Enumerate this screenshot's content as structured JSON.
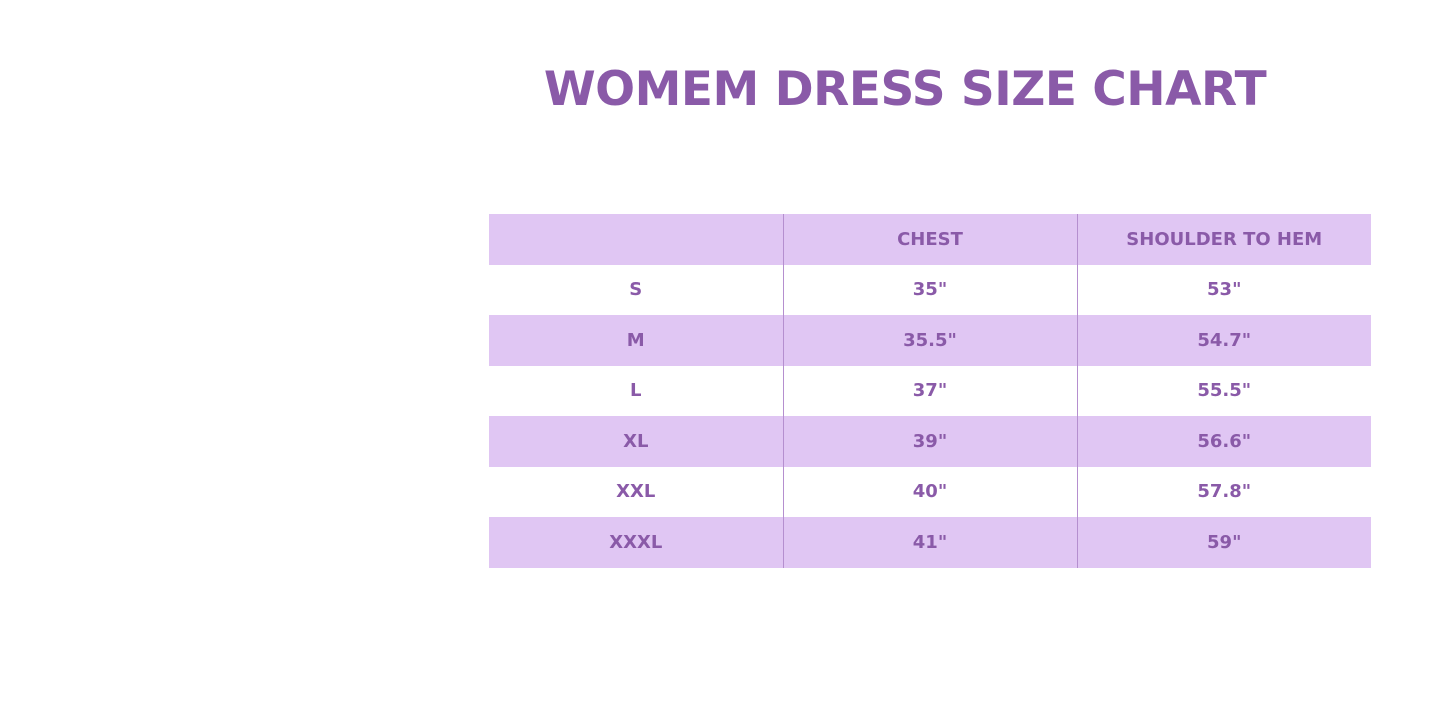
{
  "title": "WOMEM DRESS SIZE CHART",
  "colors": {
    "text": "#8a5aa8",
    "band": "#e0c6f3"
  },
  "table": {
    "headers": [
      "",
      "CHEST",
      "SHOULDER TO HEM"
    ],
    "rows": [
      [
        "S",
        "35\"",
        "53\""
      ],
      [
        "M",
        "35.5\"",
        "54.7\""
      ],
      [
        "L",
        "37\"",
        "55.5\""
      ],
      [
        "XL",
        "39\"",
        "56.6\""
      ],
      [
        "XXL",
        "40\"",
        "57.8\""
      ],
      [
        "XXXL",
        "41\"",
        "59\""
      ]
    ]
  }
}
